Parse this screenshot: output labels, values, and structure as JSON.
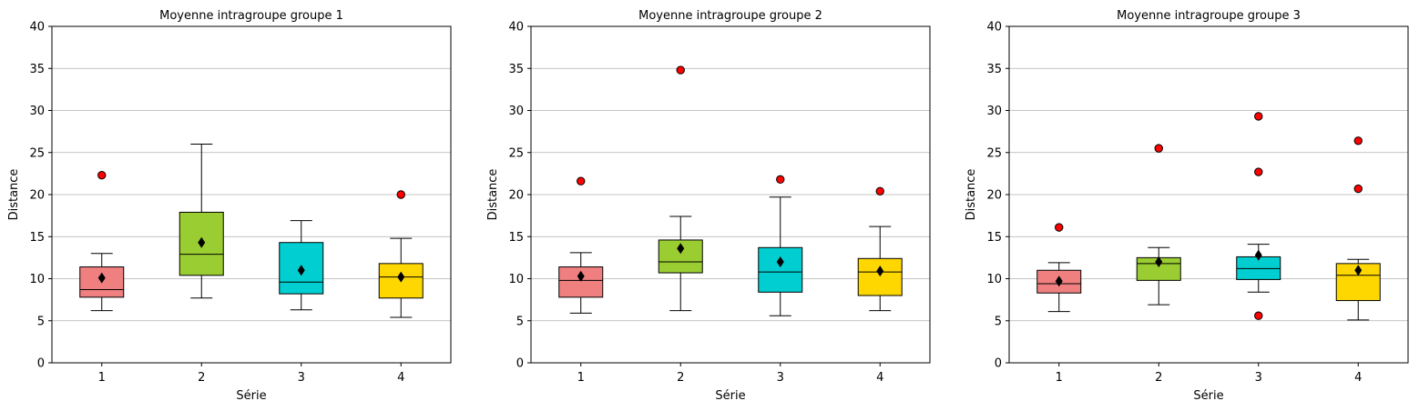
{
  "chart_data": [
    {
      "type": "box",
      "title": "Moyenne intragroupe groupe 1",
      "xlabel": "Série",
      "ylabel": "Distance",
      "ylim": [
        0,
        40
      ],
      "yticks": [
        "0",
        "5",
        "10",
        "15",
        "20",
        "25",
        "30",
        "35",
        "40"
      ],
      "grid": "horizontal",
      "categories": [
        "1",
        "2",
        "3",
        "4"
      ],
      "boxes": [
        {
          "category": "1",
          "color": "#F08080",
          "whisker_low": 6.2,
          "q1": 7.8,
          "median": 8.7,
          "q3": 11.4,
          "whisker_high": 13.0,
          "mean": 10.1,
          "outliers": [
            22.3
          ]
        },
        {
          "category": "2",
          "color": "#9ACD32",
          "whisker_low": 7.7,
          "q1": 10.4,
          "median": 12.9,
          "q3": 17.9,
          "whisker_high": 26.0,
          "mean": 14.3,
          "outliers": []
        },
        {
          "category": "3",
          "color": "#00CED1",
          "whisker_low": 6.3,
          "q1": 8.2,
          "median": 9.6,
          "q3": 14.3,
          "whisker_high": 16.9,
          "mean": 11.0,
          "outliers": []
        },
        {
          "category": "4",
          "color": "#FFD700",
          "whisker_low": 5.4,
          "q1": 7.7,
          "median": 10.2,
          "q3": 11.8,
          "whisker_high": 14.8,
          "mean": 10.2,
          "outliers": [
            20.0
          ]
        }
      ]
    },
    {
      "type": "box",
      "title": "Moyenne intragroupe groupe 2",
      "xlabel": "Série",
      "ylabel": "Distance",
      "ylim": [
        0,
        40
      ],
      "yticks": [
        "0",
        "5",
        "10",
        "15",
        "20",
        "25",
        "30",
        "35",
        "40"
      ],
      "grid": "horizontal",
      "categories": [
        "1",
        "2",
        "3",
        "4"
      ],
      "boxes": [
        {
          "category": "1",
          "color": "#F08080",
          "whisker_low": 5.9,
          "q1": 7.8,
          "median": 9.8,
          "q3": 11.4,
          "whisker_high": 13.1,
          "mean": 10.3,
          "outliers": [
            21.6
          ]
        },
        {
          "category": "2",
          "color": "#9ACD32",
          "whisker_low": 6.2,
          "q1": 10.7,
          "median": 12.0,
          "q3": 14.6,
          "whisker_high": 17.4,
          "mean": 13.6,
          "outliers": [
            34.8
          ]
        },
        {
          "category": "3",
          "color": "#00CED1",
          "whisker_low": 5.6,
          "q1": 8.4,
          "median": 10.8,
          "q3": 13.7,
          "whisker_high": 19.7,
          "mean": 12.0,
          "outliers": [
            21.8
          ]
        },
        {
          "category": "4",
          "color": "#FFD700",
          "whisker_low": 6.2,
          "q1": 8.0,
          "median": 10.8,
          "q3": 12.4,
          "whisker_high": 16.2,
          "mean": 10.9,
          "outliers": [
            20.4
          ]
        }
      ]
    },
    {
      "type": "box",
      "title": "Moyenne intragroupe groupe 3",
      "xlabel": "Série",
      "ylabel": "Distance",
      "ylim": [
        0,
        40
      ],
      "yticks": [
        "0",
        "5",
        "10",
        "15",
        "20",
        "25",
        "30",
        "35",
        "40"
      ],
      "grid": "horizontal",
      "categories": [
        "1",
        "2",
        "3",
        "4"
      ],
      "boxes": [
        {
          "category": "1",
          "color": "#F08080",
          "whisker_low": 6.1,
          "q1": 8.3,
          "median": 9.4,
          "q3": 11.0,
          "whisker_high": 11.9,
          "mean": 9.7,
          "outliers": [
            16.1
          ]
        },
        {
          "category": "2",
          "color": "#9ACD32",
          "whisker_low": 6.9,
          "q1": 9.8,
          "median": 11.8,
          "q3": 12.5,
          "whisker_high": 13.7,
          "mean": 12.0,
          "outliers": [
            25.5
          ]
        },
        {
          "category": "3",
          "color": "#00CED1",
          "whisker_low": 8.4,
          "q1": 9.9,
          "median": 11.2,
          "q3": 12.6,
          "whisker_high": 14.1,
          "mean": 12.8,
          "outliers": [
            29.3,
            22.7,
            5.6
          ]
        },
        {
          "category": "4",
          "color": "#FFD700",
          "whisker_low": 5.1,
          "q1": 7.4,
          "median": 10.4,
          "q3": 11.8,
          "whisker_high": 12.3,
          "mean": 11.0,
          "outliers": [
            26.4,
            20.7
          ]
        }
      ]
    }
  ],
  "style": {
    "grid_color": "#b0b0b0",
    "outlier_color": "#ff0000",
    "mean_marker_color": "#000000"
  }
}
